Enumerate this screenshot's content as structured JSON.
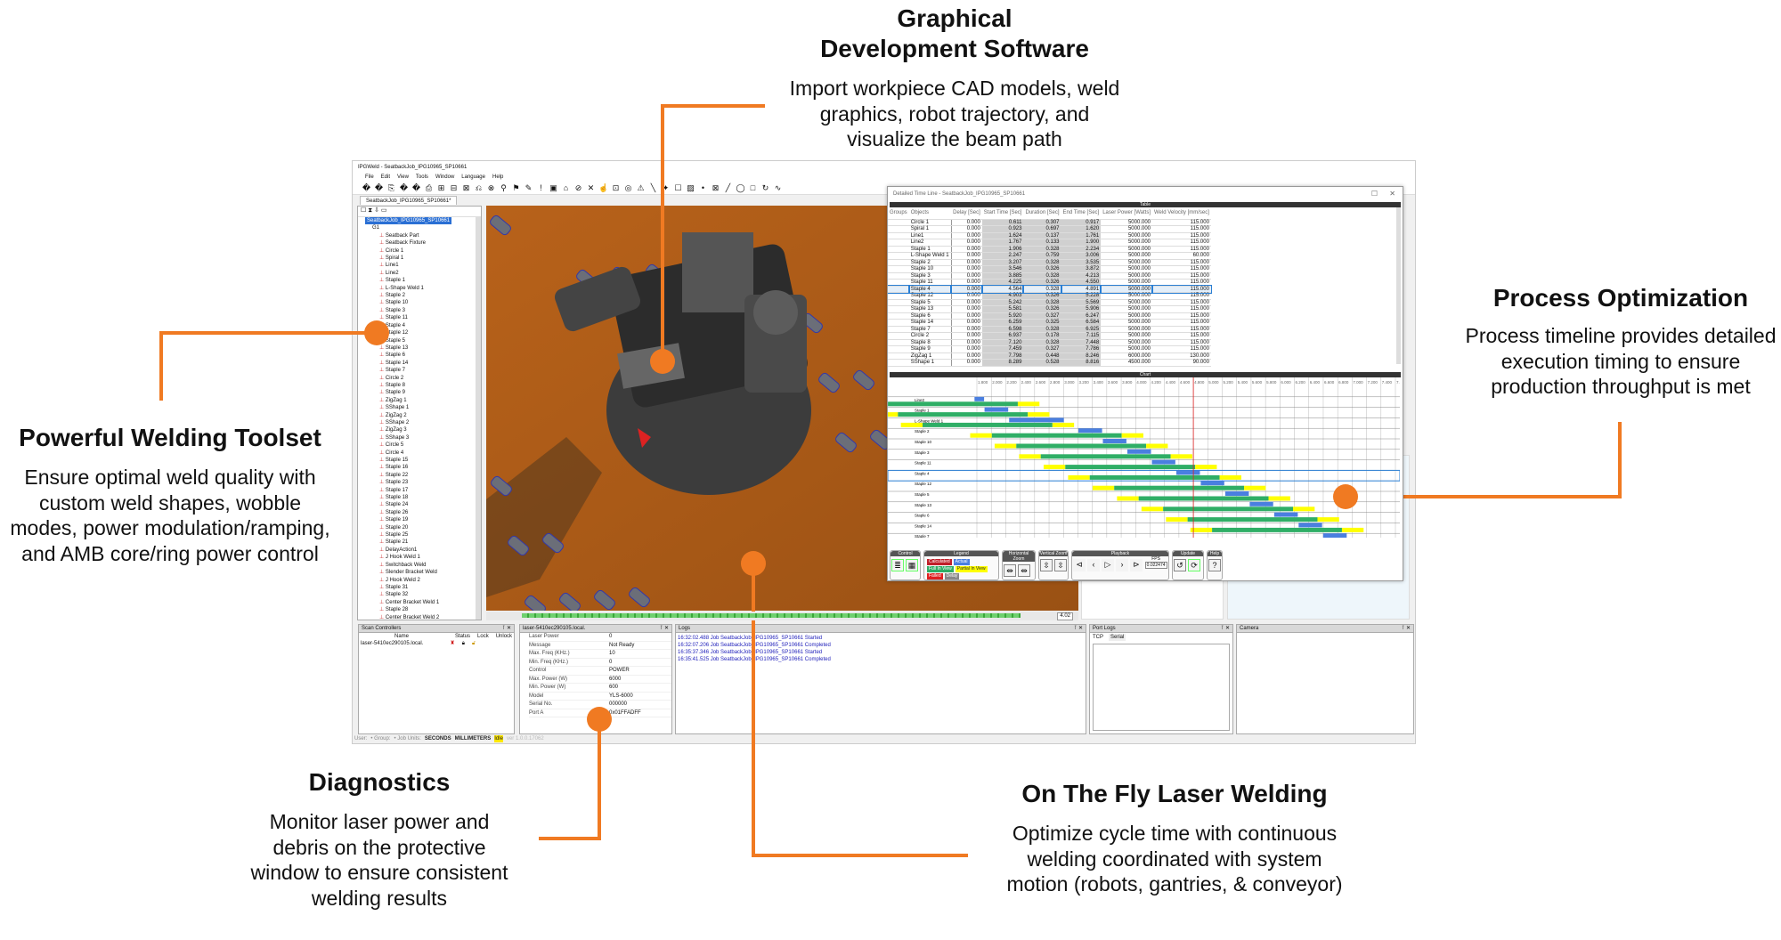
{
  "callouts": {
    "graphical": {
      "title": [
        "Graphical",
        "Development Software"
      ],
      "desc": [
        "Import workpiece CAD models, weld",
        "graphics, robot trajectory, and",
        "visualize the beam path"
      ]
    },
    "process": {
      "title": "Process Optimization",
      "desc": [
        "Process timeline provides detailed",
        "execution timing to ensure",
        "production throughput is met"
      ]
    },
    "toolset": {
      "title": "Powerful Welding Toolset",
      "desc": [
        "Ensure optimal weld quality with",
        "custom weld shapes, wobble",
        "modes, power modulation/ramping,",
        "and AMB core/ring power control"
      ]
    },
    "diagnostics": {
      "title": "Diagnostics",
      "desc": [
        "Monitor laser power and",
        "debris on the protective",
        "window to ensure consistent",
        "welding results"
      ]
    },
    "onthefly": {
      "title": "On The Fly Laser Welding",
      "desc": [
        "Optimize cycle time with continuous",
        "welding coordinated with system",
        "motion (robots, gantries, & conveyor)"
      ]
    },
    "accent": "#f07a22"
  },
  "app": {
    "title": "IPGWeld - SeatbackJob_IPG10965_SP10661",
    "menu": [
      "File",
      "Edit",
      "View",
      "Tools",
      "Window",
      "Language",
      "Help"
    ],
    "doc_tab": "SeatbackJob_IPG10965_SP10661*",
    "tree": {
      "root": "SeatbackJob_IPG10965_SP10661",
      "group": "G1",
      "items": [
        "Seatback Part",
        "Seatback Fixture",
        "Circle 1",
        "Spiral 1",
        "Line1",
        "Line2",
        "Staple 1",
        "L-Shape Weld 1",
        "Staple 2",
        "Staple 10",
        "Staple 3",
        "Staple 11",
        "Staple 4",
        "Staple 12",
        "Staple 5",
        "Staple 13",
        "Staple 6",
        "Staple 14",
        "Staple 7",
        "Circle 2",
        "Staple 8",
        "Staple 9",
        "ZigZag 1",
        "SShape 1",
        "ZigZag 2",
        "SShape 2",
        "ZigZag 3",
        "SShape 3",
        "Circle 5",
        "Circle 4",
        "Staple 15",
        "Staple 16",
        "Staple 22",
        "Staple 23",
        "Staple 17",
        "Staple 18",
        "Staple 24",
        "Staple 26",
        "Staple 19",
        "Staple 20",
        "Staple 25",
        "Staple 21",
        "DelayAction1",
        "J Hook Weld 1",
        "Switchback Weld",
        "Slender Bracket Weld",
        "J Hook Weld 2",
        "Staple 31",
        "Staple 32",
        "Center Bracket Weld 1",
        "Staple 28",
        "Center Bracket Weld 2"
      ]
    },
    "viewport_time": "4.02",
    "timeline": {
      "title": "Detailed Time Line - SeatbackJob_IPG10965_SP10661",
      "table_label": "Table",
      "chart_label": "Chart",
      "columns": [
        "Groups",
        "Objects",
        "Delay [Sec]",
        "Start Time [Sec]",
        "Duration [Sec]",
        "End Time [Sec]",
        "Laser Power [Watts]",
        "Weld Velocity [mm/sec]"
      ],
      "rows": [
        [
          "Circle 1",
          "0.000",
          "0.611",
          "0.307",
          "0.917",
          "5000.000",
          "115.000"
        ],
        [
          "Spiral 1",
          "0.000",
          "0.923",
          "0.697",
          "1.620",
          "5000.000",
          "115.000"
        ],
        [
          "Line1",
          "0.000",
          "1.624",
          "0.137",
          "1.761",
          "5000.000",
          "115.000"
        ],
        [
          "Line2",
          "0.000",
          "1.767",
          "0.133",
          "1.900",
          "5000.000",
          "115.000"
        ],
        [
          "Staple 1",
          "0.000",
          "1.906",
          "0.328",
          "2.234",
          "5000.000",
          "115.000"
        ],
        [
          "L-Shape Weld 1",
          "0.000",
          "2.247",
          "0.759",
          "3.006",
          "5000.000",
          "60.000"
        ],
        [
          "Staple 2",
          "0.000",
          "3.207",
          "0.328",
          "3.535",
          "5000.000",
          "115.000"
        ],
        [
          "Staple 10",
          "0.000",
          "3.546",
          "0.326",
          "3.872",
          "5000.000",
          "115.000"
        ],
        [
          "Staple 3",
          "0.000",
          "3.885",
          "0.328",
          "4.213",
          "5000.000",
          "115.000"
        ],
        [
          "Staple 11",
          "0.000",
          "4.225",
          "0.326",
          "4.550",
          "5000.000",
          "115.000"
        ],
        [
          "Staple 4",
          "0.000",
          "4.564",
          "0.328",
          "4.891",
          "5000.000",
          "115.000"
        ],
        [
          "Staple 12",
          "0.000",
          "4.903",
          "0.326",
          "5.228",
          "5000.000",
          "115.000"
        ],
        [
          "Staple 5",
          "0.000",
          "5.242",
          "0.328",
          "5.569",
          "5000.000",
          "115.000"
        ],
        [
          "Staple 13",
          "0.000",
          "5.581",
          "0.326",
          "5.906",
          "5000.000",
          "115.000"
        ],
        [
          "Staple 6",
          "0.000",
          "5.920",
          "0.327",
          "6.247",
          "5000.000",
          "115.000"
        ],
        [
          "Staple 14",
          "0.000",
          "6.259",
          "0.325",
          "6.584",
          "5000.000",
          "115.000"
        ],
        [
          "Staple 7",
          "0.000",
          "6.598",
          "0.328",
          "6.925",
          "5000.000",
          "115.000"
        ],
        [
          "Circle 2",
          "0.000",
          "6.937",
          "0.178",
          "7.115",
          "5000.000",
          "115.000"
        ],
        [
          "Staple 8",
          "0.000",
          "7.120",
          "0.328",
          "7.448",
          "5000.000",
          "115.000"
        ],
        [
          "Staple 9",
          "0.000",
          "7.459",
          "0.327",
          "7.786",
          "5000.000",
          "115.000"
        ],
        [
          "ZigZag 1",
          "0.000",
          "7.798",
          "0.448",
          "8.246",
          "6000.000",
          "130.000"
        ],
        [
          "SShape 1",
          "0.000",
          "8.289",
          "0.528",
          "8.816",
          "4500.000",
          "90.000"
        ]
      ],
      "selected_row": "Staple 4",
      "chart_rows": [
        "",
        "Line2",
        "Staple 1",
        "L-Shape Weld 1",
        "Staple 2",
        "Staple 10",
        "Staple 3",
        "Staple 11",
        "Staple 4",
        "Staple 12",
        "Staple 5",
        "Staple 13",
        "Staple 6",
        "Staple 14",
        "Staple 7"
      ],
      "chart_axis": {
        "min": 1.8,
        "max": 7.6,
        "step": 0.2
      },
      "cursor_time": 4.8,
      "controls": {
        "control": "Control",
        "legend": "Legend",
        "hzoom": "Horizontal Zoom",
        "vzoom": "Vertical Zoom",
        "playback": "Playback",
        "update": "Update",
        "help": "Help",
        "fps_label": "FPS",
        "fps": "0.022474"
      },
      "legend": [
        {
          "label": "Calculated",
          "color": "#c0202a"
        },
        {
          "label": "Actual",
          "color": "#4a7fe0"
        },
        {
          "label": "Full In View",
          "color": "#2fae66"
        },
        {
          "label": "Partial In View",
          "color": "#ffff00"
        },
        {
          "label": "Failed",
          "color": "#e02020"
        },
        {
          "label": "Delay",
          "color": "#888888"
        }
      ]
    },
    "scan": {
      "title": "Scan Controllers",
      "cols": [
        "Name",
        "Status",
        "Lock",
        "Unlock"
      ],
      "name": "laser-5410ec290105.local."
    },
    "laser": {
      "title": "laser-5410ec290105.local.",
      "props": [
        [
          "Laser Power",
          "0"
        ],
        [
          "Message",
          "Not Ready"
        ],
        [
          "Max. Freq (KHz.)",
          "10"
        ],
        [
          "Min. Freq (KHz.)",
          "0"
        ],
        [
          "Control",
          "POWER"
        ],
        [
          "Max. Power (W)",
          "6000"
        ],
        [
          "Min. Power (W)",
          "600"
        ],
        [
          "Model",
          "YLS-6000"
        ],
        [
          "Serial No.",
          "000000"
        ],
        [
          "Port A",
          "0x01FFADFF"
        ]
      ]
    },
    "logs": {
      "title": "Logs",
      "lines": [
        "16:32:02.488 Job SeatbackJob_IPG10965_SP10661 Started",
        "16:32:07.206 Job SeatbackJob_IPG10965_SP10661 Completed",
        "16:35:37.346 Job SeatbackJob_IPG10965_SP10661 Started",
        "16:35:41.525 Job SeatbackJob_IPG10965_SP10661 Completed"
      ]
    },
    "portlogs": {
      "title": "Port Logs",
      "tabs": [
        "TCP",
        "Serial"
      ]
    },
    "camera": {
      "title": "Camera"
    },
    "status": {
      "user": "User:",
      "group": "• Group:",
      "units_label": "• Job Units:",
      "time_unit": "SECONDS",
      "length_unit": "MILLIMETERS",
      "state": "Idle",
      "version": "ver 1.0.0.17062"
    }
  }
}
